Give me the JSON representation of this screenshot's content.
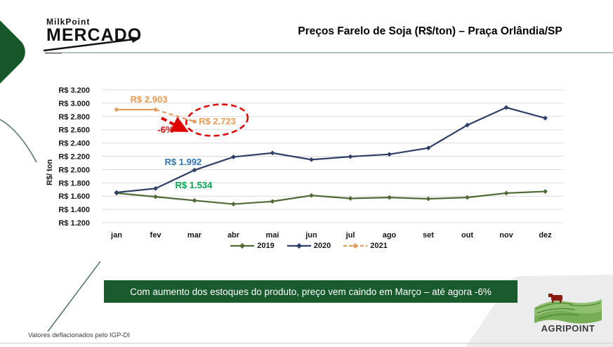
{
  "header": {
    "logo_line1": "MilkPoint",
    "logo_line2": "MERCADO",
    "title": "Preços Farelo de Soja (R$/ton) – Praça Orlândia/SP"
  },
  "chart_data": {
    "type": "line",
    "title": "Preços Farelo de Soja (R$/ton) – Praça Orlândia/SP",
    "ylabel": "R$/ ton",
    "ylim": [
      1200,
      3200
    ],
    "grid": true,
    "legend_position": "bottom",
    "x_labels": [
      "jan",
      "fev",
      "mar",
      "abr",
      "mai",
      "jun",
      "jul",
      "ago",
      "set",
      "out",
      "nov",
      "dez"
    ],
    "y_ticks": [
      {
        "label": "R$ 3.200",
        "value": 3200
      },
      {
        "label": "R$ 3.000",
        "value": 3000
      },
      {
        "label": "R$ 2.800",
        "value": 2800
      },
      {
        "label": "R$ 2.600",
        "value": 2600
      },
      {
        "label": "R$ 2.400",
        "value": 2400
      },
      {
        "label": "R$ 2.200",
        "value": 2200
      },
      {
        "label": "R$ 2.000",
        "value": 2000
      },
      {
        "label": "R$ 1.800",
        "value": 1800
      },
      {
        "label": "R$ 1.600",
        "value": 1600
      },
      {
        "label": "R$ 1.400",
        "value": 1400
      },
      {
        "label": "R$ 1.200",
        "value": 1200
      }
    ],
    "series": [
      {
        "name": "2019",
        "color": "#4f6b35",
        "values": [
          1645,
          1590,
          1534,
          1480,
          1520,
          1610,
          1565,
          1580,
          1560,
          1580,
          1645,
          1670
        ]
      },
      {
        "name": "2020",
        "color": "#2d3f66",
        "values": [
          1655,
          1715,
          1992,
          2190,
          2250,
          2150,
          2195,
          2230,
          2325,
          2670,
          2935,
          2775
        ]
      },
      {
        "name": "2021",
        "color": "#e39b5e",
        "dash_from": 1,
        "values": [
          2903,
          2903,
          2723
        ]
      }
    ],
    "point_labels": [
      {
        "text": "R$ 2.903",
        "color": "#ed9950",
        "month": 0.83,
        "value": 3010,
        "anchor": "middle",
        "size": 13
      },
      {
        "text": "R$ 2.723",
        "color": "#ed9950",
        "month": 2.11,
        "value": 2681,
        "anchor": "start",
        "size": 13
      },
      {
        "text": "-6%",
        "color": "#e00000",
        "month": 1.05,
        "value": 2554,
        "anchor": "start",
        "size": 13
      },
      {
        "text": "R$ 1.992",
        "color": "#2e75b6",
        "month": 1.71,
        "value": 2068,
        "anchor": "middle",
        "size": 13
      },
      {
        "text": "R$ 1.534",
        "color": "#00a651",
        "month": 1.98,
        "value": 1719,
        "anchor": "middle",
        "size": 13
      }
    ],
    "annotation_note": "-6% drop from fev to mar 2021 circled in red"
  },
  "banner": {
    "text": "Com aumento dos estoques do produto, preço vem caindo em Março – até agora -6%",
    "bg": "#1a5b2d"
  },
  "footnote": "Valores deflacionados pelo IGP-DI",
  "agripoint": {
    "label": "AGRIPOINT"
  },
  "colors": {
    "accent_green": "#17572a",
    "grid": "#d9d9d9",
    "red_annotation": "#e00000"
  }
}
